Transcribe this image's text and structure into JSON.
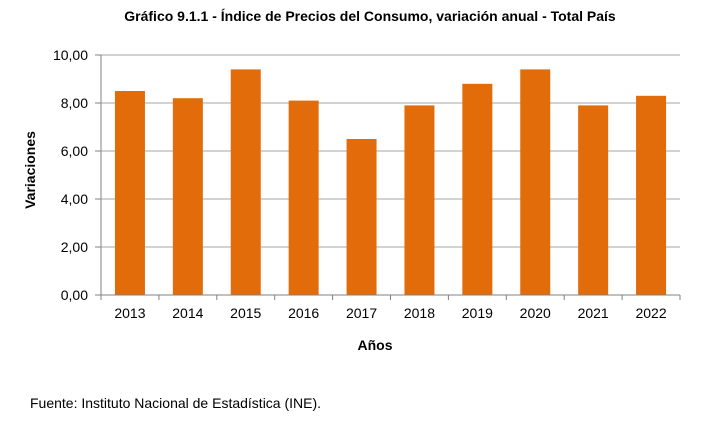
{
  "chart_data": {
    "type": "bar",
    "title": "Gráfico 9.1.1 - Índice de Precios del Consumo, variación anual - Total País",
    "xlabel": "Años",
    "ylabel": "Variaciones",
    "categories": [
      "2013",
      "2014",
      "2015",
      "2016",
      "2017",
      "2018",
      "2019",
      "2020",
      "2021",
      "2022"
    ],
    "values": [
      8.5,
      8.2,
      9.4,
      8.1,
      6.5,
      7.9,
      8.8,
      9.4,
      7.9,
      8.3
    ],
    "ylim": [
      0,
      10
    ],
    "yticks": [
      "0,00",
      "2,00",
      "4,00",
      "6,00",
      "8,00",
      "10,00"
    ],
    "grid": true,
    "legend": "none",
    "bar_color": "#E36C0A"
  },
  "source": "Fuente: Instituto Nacional de Estadística (INE)."
}
